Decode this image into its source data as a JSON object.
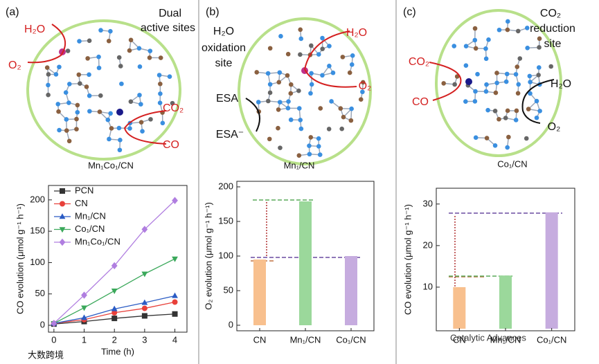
{
  "panels": [
    {
      "label": "(a)",
      "texts": [
        "Dual",
        "active sites",
        "H₂O",
        "O₂",
        "CO₂",
        "CO"
      ],
      "caption": "Mn₁Co₁/CN"
    },
    {
      "label": "(b)",
      "texts": [
        "H₂O",
        "oxidation",
        "site",
        "H₂O",
        "O₂",
        "ESA",
        "ESA⁻"
      ],
      "caption": "Mn₁/CN"
    },
    {
      "label": "(c)",
      "texts": [
        "CO₂",
        "reduction",
        "site",
        "CO₂",
        "CO",
        "H₂O",
        "O₂"
      ],
      "caption": "Co₁/CN"
    }
  ],
  "watermarks": [
    "Catalytic Advances",
    "大数跨境"
  ],
  "chart_data": [
    {
      "type": "line",
      "x_label": "Time (h)",
      "y_label": "CO evolution (μmol g⁻¹ h⁻¹)",
      "x": [
        0,
        1,
        2,
        3,
        4
      ],
      "xlim": [
        -0.18,
        4.4
      ],
      "xticks": [
        0,
        1,
        2,
        3,
        4
      ],
      "ylim": [
        -11,
        223
      ],
      "yticks": [
        0,
        50,
        100,
        150,
        200
      ],
      "legend": "upper left",
      "series": [
        {
          "name": "PCN",
          "color": "#333333",
          "marker": "square",
          "values": [
            2,
            6,
            11,
            15,
            18
          ]
        },
        {
          "name": "CN",
          "color": "#e8403a",
          "marker": "circle",
          "values": [
            3,
            9,
            20,
            27,
            37
          ]
        },
        {
          "name": "Mn₁/CN",
          "color": "#2a5bc4",
          "marker": "triangle",
          "values": [
            3,
            12,
            26,
            36,
            47
          ]
        },
        {
          "name": "Co₁/CN",
          "color": "#3aa85a",
          "marker": "triangle-down",
          "values": [
            3,
            28,
            55,
            82,
            106
          ]
        },
        {
          "name": "Mn₁Co₁/CN",
          "color": "#b07ee0",
          "marker": "diamond",
          "values": [
            3,
            48,
            95,
            153,
            199
          ]
        }
      ]
    },
    {
      "type": "bar",
      "y_label": "O₂ evolution (μmol g⁻¹ h⁻¹)",
      "categories": [
        "CN",
        "Mn₁/CN",
        "Co₁/CN"
      ],
      "values": [
        95,
        179,
        100
      ],
      "colors": [
        "#f8c08e",
        "#9bd89b",
        "#c6acdf"
      ],
      "ylim": [
        -8,
        208
      ],
      "yticks": [
        0,
        50,
        100,
        150,
        200
      ]
    },
    {
      "type": "bar",
      "y_label": "CO evolution (μmol g⁻¹ h⁻¹)",
      "categories": [
        "CN",
        "Mn₁/CN",
        "Co₁/CN"
      ],
      "values": [
        10,
        12.8,
        28
      ],
      "colors": [
        "#f8c08e",
        "#9bd89b",
        "#c6acdf"
      ],
      "ylim": [
        -0.5,
        33.8
      ],
      "yticks": [
        10,
        20,
        30
      ]
    }
  ]
}
